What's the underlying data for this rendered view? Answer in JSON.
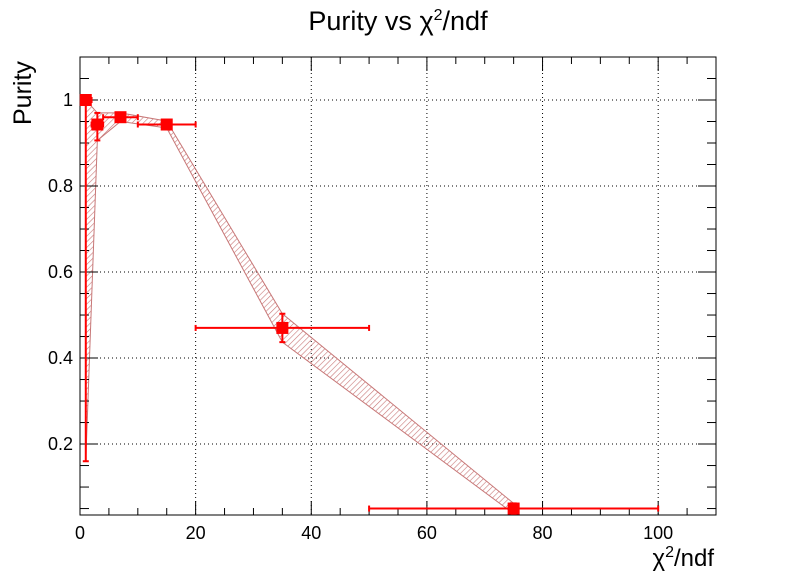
{
  "chart_data": {
    "type": "scatter",
    "title": {
      "chi": "χ",
      "sup": "2",
      "prefix": "Purity vs ",
      "suffix": "/ndf"
    },
    "xlabel": {
      "chi": "χ",
      "sup": "2",
      "suffix": "/ndf"
    },
    "ylabel": "Purity",
    "xlim": [
      0,
      110
    ],
    "ylim": [
      0.035,
      1.1
    ],
    "x_ticks": [
      0,
      20,
      40,
      60,
      80,
      100
    ],
    "y_ticks": [
      0.2,
      0.4,
      0.6,
      0.8,
      1
    ],
    "y_tick_labels": [
      "0.2",
      "0.4",
      "0.6",
      "0.8",
      "1"
    ],
    "x_tick_labels": [
      "0",
      "20",
      "40",
      "60",
      "80",
      "100"
    ],
    "grid": true,
    "series": [
      {
        "color": "#ff0000",
        "band_color": "#c87878",
        "points": [
          {
            "x": 1,
            "y": 1.0,
            "xerr": [
              0,
              1
            ],
            "yerr": [
              0.84,
              0
            ]
          },
          {
            "x": 3,
            "y": 0.943,
            "xerr": [
              1,
              1
            ],
            "yerr": [
              0.037,
              0.027
            ]
          },
          {
            "x": 7,
            "y": 0.96,
            "xerr": [
              3,
              3
            ],
            "yerr": [
              0.01,
              0.01
            ]
          },
          {
            "x": 15,
            "y": 0.943,
            "xerr": [
              5,
              5
            ],
            "yerr": [
              0.008,
              0.008
            ]
          },
          {
            "x": 35,
            "y": 0.47,
            "xerr": [
              15,
              15
            ],
            "yerr": [
              0.033,
              0.033
            ]
          },
          {
            "x": 75,
            "y": 0.05,
            "xerr": [
              25,
              25
            ],
            "yerr": [
              0.012,
              0.012
            ]
          }
        ]
      }
    ]
  }
}
